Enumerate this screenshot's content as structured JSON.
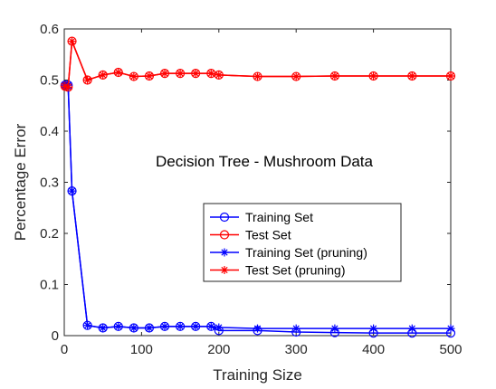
{
  "chart_data": {
    "type": "line",
    "title": "",
    "annotation": "Decision Tree - Mushroom Data",
    "xlabel": "Training Size",
    "ylabel": "Percentage Error",
    "xlim": [
      0,
      500
    ],
    "ylim": [
      0,
      0.6
    ],
    "xticks": [
      0,
      100,
      200,
      300,
      400,
      500
    ],
    "yticks": [
      0,
      0.1,
      0.2,
      0.3,
      0.4,
      0.5,
      0.6
    ],
    "xtick_labels": [
      "0",
      "100",
      "200",
      "300",
      "400",
      "500"
    ],
    "ytick_labels": [
      "0",
      "0.1",
      "0.2",
      "0.3",
      "0.4",
      "0.5",
      "0.6"
    ],
    "grid": false,
    "legend_position": "center-right",
    "x": [
      1,
      5,
      10,
      30,
      50,
      70,
      90,
      110,
      130,
      150,
      170,
      190,
      200,
      250,
      300,
      350,
      400,
      450,
      500
    ],
    "series": [
      {
        "name": "Training Set",
        "color": "#0000ff",
        "marker": "circle",
        "values": [
          0.49,
          0.49,
          0.283,
          0.02,
          0.015,
          0.018,
          0.015,
          0.015,
          0.018,
          0.018,
          0.018,
          0.018,
          0.01,
          0.01,
          0.007,
          0.006,
          0.005,
          0.005,
          0.005
        ]
      },
      {
        "name": "Test Set",
        "color": "#ff0000",
        "marker": "circle",
        "values": [
          0.488,
          0.486,
          0.576,
          0.5,
          0.51,
          0.515,
          0.507,
          0.508,
          0.513,
          0.513,
          0.513,
          0.513,
          0.51,
          0.507,
          0.507,
          0.508,
          0.508,
          0.508,
          0.508
        ]
      },
      {
        "name": "Training Set (pruning)",
        "color": "#0000ff",
        "marker": "asterisk",
        "values": [
          0.49,
          0.49,
          0.283,
          0.02,
          0.015,
          0.018,
          0.015,
          0.015,
          0.018,
          0.018,
          0.018,
          0.018,
          0.016,
          0.014,
          0.014,
          0.014,
          0.014,
          0.014,
          0.014
        ]
      },
      {
        "name": "Test Set (pruning)",
        "color": "#ff0000",
        "marker": "asterisk",
        "values": [
          0.488,
          0.486,
          0.576,
          0.5,
          0.51,
          0.515,
          0.507,
          0.508,
          0.513,
          0.513,
          0.513,
          0.513,
          0.51,
          0.507,
          0.507,
          0.508,
          0.508,
          0.508,
          0.508
        ]
      }
    ]
  }
}
